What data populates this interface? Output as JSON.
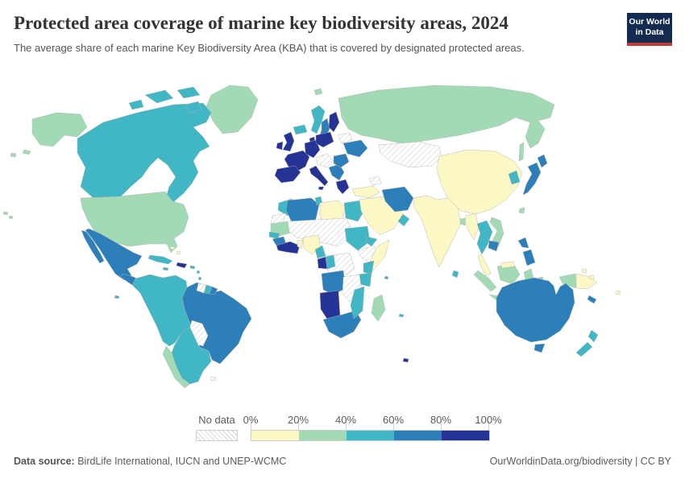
{
  "header": {
    "title": "Protected area coverage of marine key biodiversity areas, 2024",
    "subtitle": "The average share of each marine Key Biodiversity Area (KBA) that is covered by designated protected areas.",
    "logo": {
      "line1": "Our World",
      "line2": "in Data",
      "bg": "#132b4f",
      "accent": "#c0393b"
    }
  },
  "legend": {
    "no_data_label": "No data",
    "tick_labels": [
      "0%",
      "20%",
      "40%",
      "60%",
      "80%",
      "100%"
    ],
    "bins": [
      {
        "range": "0-20",
        "color": "#fbf8c6"
      },
      {
        "range": "20-40",
        "color": "#a1dab4"
      },
      {
        "range": "40-60",
        "color": "#41b6c4"
      },
      {
        "range": "60-80",
        "color": "#2c7fb8"
      },
      {
        "range": "80-100",
        "color": "#253494"
      }
    ]
  },
  "footer": {
    "source_label": "Data source:",
    "source_text": " BirdLife International, IUCN and UNEP-WCMC",
    "credit": "OurWorldinData.org/biodiversity | CC BY"
  },
  "map": {
    "ocean_color": "#ffffff",
    "border_color": "#b3b3b3",
    "regions": {
      "greenland": "20-40",
      "canada": "40-60",
      "alaska": "20-40",
      "usa": "20-40",
      "mexico": "60-80",
      "central-america-north": "60-80",
      "central-america-south": "40-60",
      "cuba": "40-60",
      "hispaniola": "80-100",
      "jamaica": "40-60",
      "puerto-rico": "40-60",
      "bahamas": "0-20",
      "lesser-antilles": "40-60",
      "hawaii": "20-40",
      "galapagos": "40-60",
      "andean-west": "40-60",
      "brazil": "60-80",
      "guyana": "no-data",
      "suriname": "40-60",
      "french-guiana": "60-80",
      "bolivia-paraguay": "no-data",
      "chile": "20-40",
      "argentina": "40-60",
      "falkland-islands": "no-data",
      "iceland": "40-60",
      "norway": "40-60",
      "sweden": "60-80",
      "finland": "80-100",
      "denmark": "80-100",
      "uk": "80-100",
      "ireland": "80-100",
      "france": "80-100",
      "iberia": "80-100",
      "germany": "80-100",
      "poland-baltics": "80-100",
      "central-europe": "no-data",
      "italy": "80-100",
      "balkans": "60-80",
      "greece": "80-100",
      "romania-bulgaria": "60-80",
      "ukraine": "60-80",
      "belarus": "no-data",
      "russia": "20-40",
      "svalbard": "20-40",
      "kazakhstan": "no-data",
      "mongolia": "no-data",
      "caucasus": "no-data",
      "turkey": "0-20",
      "levant-arabia": "0-20",
      "oman": "40-60",
      "iran": "60-80",
      "india-pakistan": "0-20",
      "sri-lanka": "40-60",
      "bangladesh": "20-40",
      "china": "0-20",
      "myanmar": "0-20",
      "thailand": "40-60",
      "vietnam": "20-40",
      "cambodia": "60-80",
      "malay-peninsula": "0-20",
      "sumatra": "20-40",
      "java": "20-40",
      "borneo": "20-40",
      "malaysia-borneo": "0-20",
      "sulawesi": "20-40",
      "indonesia-east": "20-40",
      "philippines": "60-80",
      "taiwan": "20-40",
      "korea": "40-60",
      "japan": "60-80",
      "papua-west": "20-40",
      "png-east": "0-20",
      "solomon-islands": "0-20",
      "fiji": "0-20",
      "new-caledonia": "60-80",
      "australia": "60-80",
      "tasmania": "60-80",
      "new-zealand": "40-60",
      "heard-island": "80-100",
      "morocco": "40-60",
      "western-sahara": "no-data",
      "algeria": "60-80",
      "tunisia": "40-60",
      "libya": "0-20",
      "egypt": "40-60",
      "mauritania": "20-40",
      "sahel": "no-data",
      "senegal": "40-60",
      "guinea": "60-80",
      "gulf-of-guinea-coast": "80-100",
      "togo-benin": "0-20",
      "nigeria": "0-20",
      "cameroon": "40-60",
      "sudan": "40-60",
      "eritrea": "40-60",
      "ethiopia": "no-data",
      "somalia": "0-20",
      "kenya": "40-60",
      "tanzania": "40-60",
      "drc": "no-data",
      "gabon": "80-100",
      "congo": "40-60",
      "angola": "60-80",
      "zambia-zimbabwe": "no-data",
      "namibia": "80-100",
      "south-africa": "60-80",
      "mozambique": "40-60",
      "madagascar": "20-40",
      "mauritius": "40-60",
      "seychelles": "40-60"
    }
  }
}
